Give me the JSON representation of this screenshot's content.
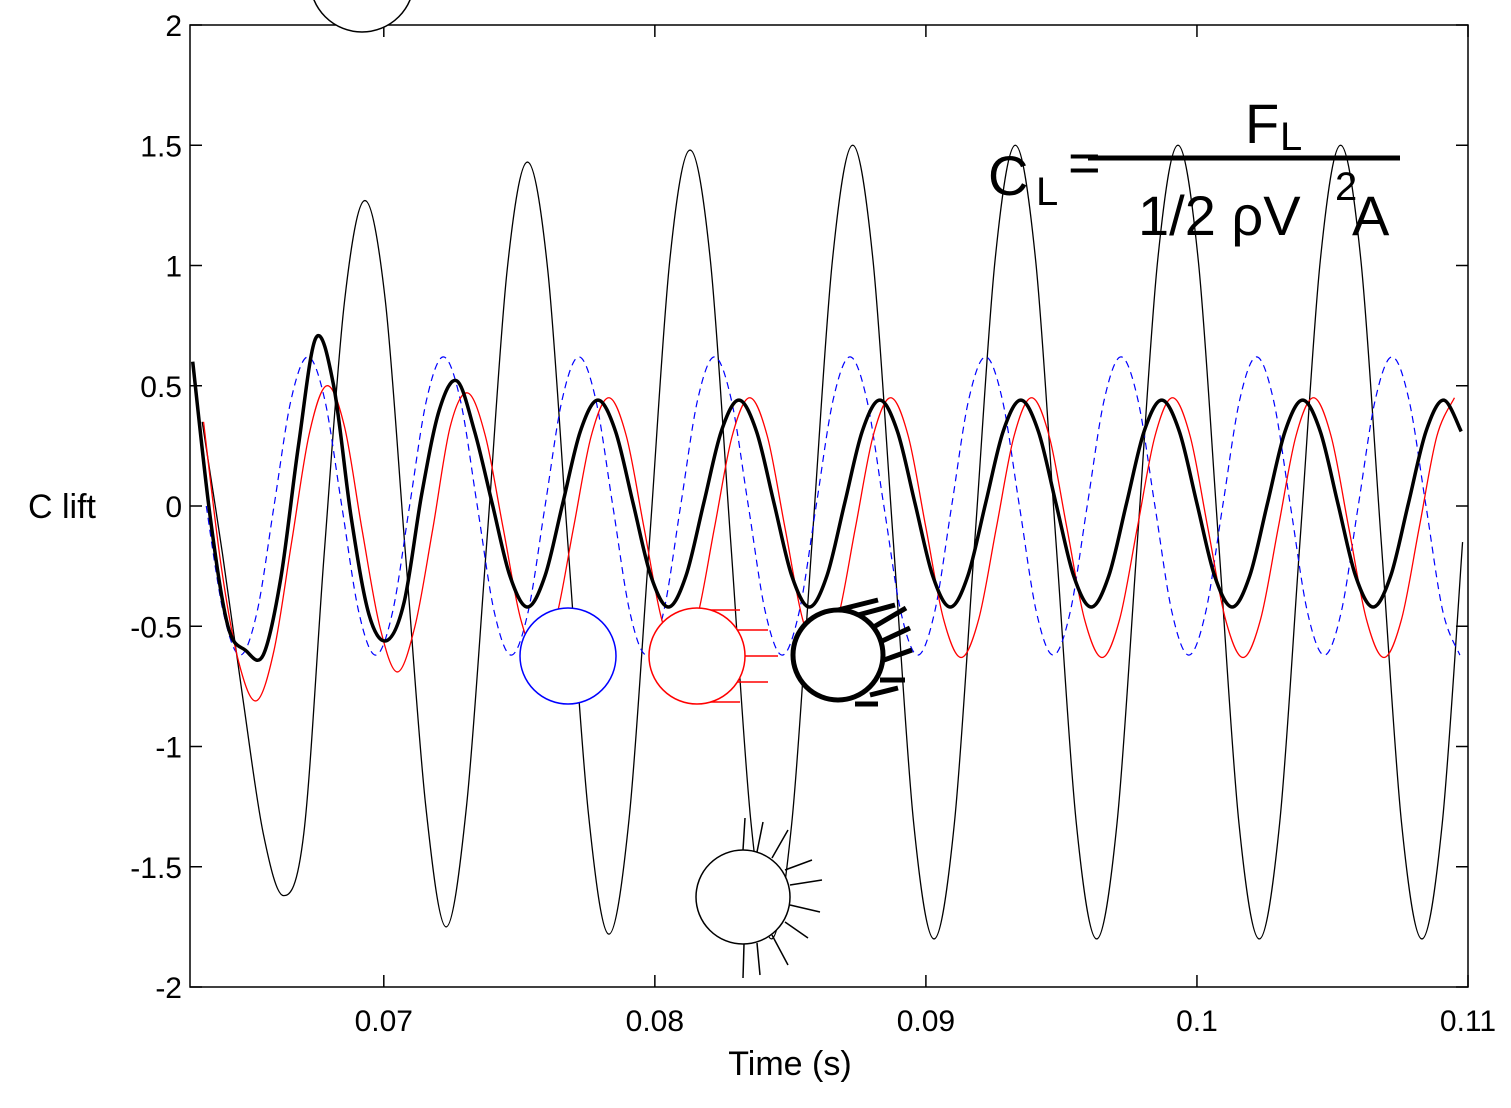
{
  "chart_data": {
    "type": "line",
    "x_label": "Time (s)",
    "y_label": "C lift",
    "xlim": [
      0.06285,
      0.11
    ],
    "xticks": [
      0.07,
      0.08,
      0.09,
      0.1,
      0.11
    ],
    "ylim": [
      -2,
      2
    ],
    "yticks": [
      -2,
      -1.5,
      -1,
      -0.5,
      0,
      0.5,
      1,
      1.5,
      2
    ],
    "grid": false,
    "annotation": {
      "lhs": "C",
      "lhs_sub": "L",
      "eq": "=",
      "num": "F",
      "num_sub": "L",
      "den": "1/2 ρV",
      "den_sup": "2",
      "den_end": "A"
    },
    "series": [
      {
        "color": "#000000",
        "x": [
          0.0633,
          0.06405,
          0.0648,
          0.06555,
          0.0663,
          0.06705,
          0.0678,
          0.06855,
          0.0693,
          0.07005,
          0.0708,
          0.07155,
          0.0723,
          0.07305,
          0.0738,
          0.07455,
          0.0753,
          0.07605,
          0.0768,
          0.07755,
          0.0783,
          0.07905,
          0.0798,
          0.08055,
          0.0813,
          0.08205,
          0.0828,
          0.08355,
          0.0843,
          0.08505,
          0.0858,
          0.08655,
          0.0873,
          0.08805,
          0.0888,
          0.08955,
          0.0903,
          0.09105,
          0.0918,
          0.09255,
          0.0933,
          0.09405,
          0.0948,
          0.09555,
          0.0963,
          0.09705,
          0.0978,
          0.09855,
          0.0993,
          0.10005,
          0.1008,
          0.10155,
          0.1023,
          0.10305,
          0.1038,
          0.10455,
          0.1053,
          0.10605,
          0.1068,
          0.10755,
          0.1083,
          0.10905,
          0.1098
        ],
        "values": [
          0.35,
          -0.2,
          -0.8,
          -1.36,
          -1.62,
          -1.36,
          -0.2,
          0.85,
          1.27,
          0.86,
          -0.2,
          -1.25,
          -1.75,
          -1.25,
          -0.15,
          0.98,
          1.43,
          0.98,
          -0.17,
          -1.28,
          -1.78,
          -1.3,
          -0.15,
          1.02,
          1.48,
          1.02,
          -0.15,
          -1.32,
          -1.8,
          -1.32,
          -0.15,
          1.02,
          1.5,
          1.02,
          -0.15,
          -1.32,
          -1.8,
          -1.32,
          -0.15,
          1.02,
          1.5,
          1.02,
          -0.15,
          -1.32,
          -1.8,
          -1.32,
          -0.15,
          1.02,
          1.5,
          1.02,
          -0.15,
          -1.32,
          -1.8,
          -1.32,
          -0.15,
          1.02,
          1.5,
          1.02,
          -0.15,
          -1.32,
          -1.8,
          -1.32,
          -0.15
        ]
      },
      {
        "color": "#0000ff",
        "dashed": true,
        "x": [
          0.06345,
          0.064075,
          0.0647,
          0.065325,
          0.06595,
          0.066575,
          0.0672,
          0.067825,
          0.06845,
          0.069075,
          0.0697,
          0.070325,
          0.07095,
          0.071575,
          0.0722,
          0.072825,
          0.07345,
          0.074075,
          0.0747,
          0.075325,
          0.07595,
          0.076575,
          0.0772,
          0.077825,
          0.07845,
          0.079075,
          0.0797,
          0.080325,
          0.08095,
          0.081575,
          0.0822,
          0.082825,
          0.08345,
          0.084075,
          0.0847,
          0.085325,
          0.08595,
          0.086575,
          0.0872,
          0.087825,
          0.08845,
          0.089075,
          0.0897,
          0.090325,
          0.09095,
          0.091575,
          0.0922,
          0.092825,
          0.09345,
          0.094075,
          0.0947,
          0.095325,
          0.09595,
          0.096575,
          0.0972,
          0.097825,
          0.09845,
          0.099075,
          0.0997,
          0.100325,
          0.10095,
          0.101575,
          0.1022,
          0.102825,
          0.10345,
          0.104075,
          0.1047,
          0.105325,
          0.10595,
          0.106575,
          0.1072,
          0.107825,
          0.10845,
          0.109075,
          0.1097
        ],
        "values": [
          0,
          -0.44,
          -0.62,
          -0.44,
          0,
          0.44,
          0.62,
          0.44,
          0,
          -0.44,
          -0.62,
          -0.44,
          0,
          0.44,
          0.62,
          0.44,
          0,
          -0.44,
          -0.62,
          -0.44,
          0,
          0.44,
          0.62,
          0.44,
          0,
          -0.44,
          -0.62,
          -0.44,
          0,
          0.44,
          0.62,
          0.44,
          0,
          -0.44,
          -0.62,
          -0.44,
          0,
          0.44,
          0.62,
          0.44,
          0,
          -0.44,
          -0.62,
          -0.44,
          0,
          0.44,
          0.62,
          0.44,
          0,
          -0.44,
          -0.62,
          -0.44,
          0,
          0.44,
          0.62,
          0.44,
          0,
          -0.44,
          -0.62,
          -0.44,
          0,
          0.44,
          0.62,
          0.44,
          0,
          -0.44,
          -0.62,
          -0.44,
          0,
          0.44,
          0.62,
          0.44,
          0,
          -0.44,
          -0.62
        ]
      },
      {
        "color": "#ff0000",
        "x": [
          0.06335,
          0.064,
          0.06465,
          0.0653,
          0.06595,
          0.0666,
          0.06725,
          0.0679,
          0.06855,
          0.0692,
          0.06985,
          0.0705,
          0.07115,
          0.0718,
          0.07245,
          0.0731,
          0.07375,
          0.0744,
          0.07505,
          0.0757,
          0.07635,
          0.077,
          0.07765,
          0.0783,
          0.07895,
          0.0796,
          0.08025,
          0.0809,
          0.08155,
          0.0822,
          0.08285,
          0.0835,
          0.08415,
          0.0848,
          0.08545,
          0.0861,
          0.08675,
          0.0874,
          0.08805,
          0.0887,
          0.08935,
          0.09,
          0.09065,
          0.0913,
          0.09195,
          0.0926,
          0.09325,
          0.0939,
          0.09455,
          0.0952,
          0.09585,
          0.0965,
          0.09715,
          0.0978,
          0.09845,
          0.0991,
          0.09975,
          0.1004,
          0.10105,
          0.1017,
          0.10235,
          0.103,
          0.10365,
          0.1043,
          0.10495,
          0.1056,
          0.10625,
          0.1069,
          0.10755,
          0.1082,
          0.10885,
          0.1095
        ],
        "values": [
          0.35,
          -0.25,
          -0.65,
          -0.81,
          -0.6,
          -0.15,
          0.3,
          0.5,
          0.33,
          -0.1,
          -0.5,
          -0.69,
          -0.5,
          -0.1,
          0.33,
          0.47,
          0.29,
          -0.09,
          -0.47,
          -0.63,
          -0.47,
          -0.09,
          0.29,
          0.45,
          0.29,
          -0.09,
          -0.47,
          -0.63,
          -0.47,
          -0.09,
          0.29,
          0.45,
          0.29,
          -0.09,
          -0.47,
          -0.63,
          -0.47,
          -0.09,
          0.29,
          0.45,
          0.29,
          -0.09,
          -0.47,
          -0.63,
          -0.47,
          -0.09,
          0.29,
          0.45,
          0.29,
          -0.09,
          -0.47,
          -0.63,
          -0.47,
          -0.09,
          0.29,
          0.45,
          0.29,
          -0.09,
          -0.47,
          -0.63,
          -0.47,
          -0.09,
          0.29,
          0.45,
          0.29,
          -0.09,
          -0.47,
          -0.63,
          -0.47,
          -0.09,
          0.29,
          0.45
        ]
      },
      {
        "color": "#000000",
        "bold": true,
        "x": [
          0.06295,
          0.0636,
          0.06425,
          0.0649,
          0.06555,
          0.0662,
          0.06685,
          0.0675,
          0.06815,
          0.0688,
          0.06945,
          0.0701,
          0.07075,
          0.0714,
          0.07205,
          0.0727,
          0.07335,
          0.074,
          0.07465,
          0.0753,
          0.07595,
          0.0766,
          0.07725,
          0.0779,
          0.07855,
          0.0792,
          0.07985,
          0.0805,
          0.08115,
          0.0818,
          0.08245,
          0.0831,
          0.08375,
          0.0844,
          0.08505,
          0.0857,
          0.08635,
          0.087,
          0.08765,
          0.0883,
          0.08895,
          0.0896,
          0.09025,
          0.0909,
          0.09155,
          0.0922,
          0.09285,
          0.0935,
          0.09415,
          0.0948,
          0.09545,
          0.0961,
          0.09675,
          0.0974,
          0.09805,
          0.0987,
          0.09935,
          0.1,
          0.10065,
          0.1013,
          0.10195,
          0.1026,
          0.10325,
          0.1039,
          0.10455,
          0.1052,
          0.10585,
          0.1065,
          0.10715,
          0.1078,
          0.10845,
          0.1091,
          0.10975
        ],
        "values": [
          0.6,
          -0.05,
          -0.5,
          -0.6,
          -0.62,
          -0.3,
          0.25,
          0.7,
          0.5,
          -0.05,
          -0.45,
          -0.56,
          -0.4,
          0.05,
          0.4,
          0.52,
          0.31,
          0.01,
          -0.29,
          -0.42,
          -0.29,
          0.01,
          0.31,
          0.44,
          0.31,
          0.01,
          -0.29,
          -0.42,
          -0.29,
          0.01,
          0.31,
          0.44,
          0.31,
          0.01,
          -0.29,
          -0.42,
          -0.29,
          0.01,
          0.31,
          0.44,
          0.31,
          0.01,
          -0.29,
          -0.42,
          -0.29,
          0.01,
          0.31,
          0.44,
          0.31,
          0.01,
          -0.29,
          -0.42,
          -0.29,
          0.01,
          0.31,
          0.44,
          0.31,
          0.01,
          -0.29,
          -0.42,
          -0.29,
          0.01,
          0.31,
          0.44,
          0.31,
          0.01,
          -0.29,
          -0.42,
          -0.29,
          0.01,
          0.31,
          0.44,
          0.31
        ]
      }
    ]
  }
}
